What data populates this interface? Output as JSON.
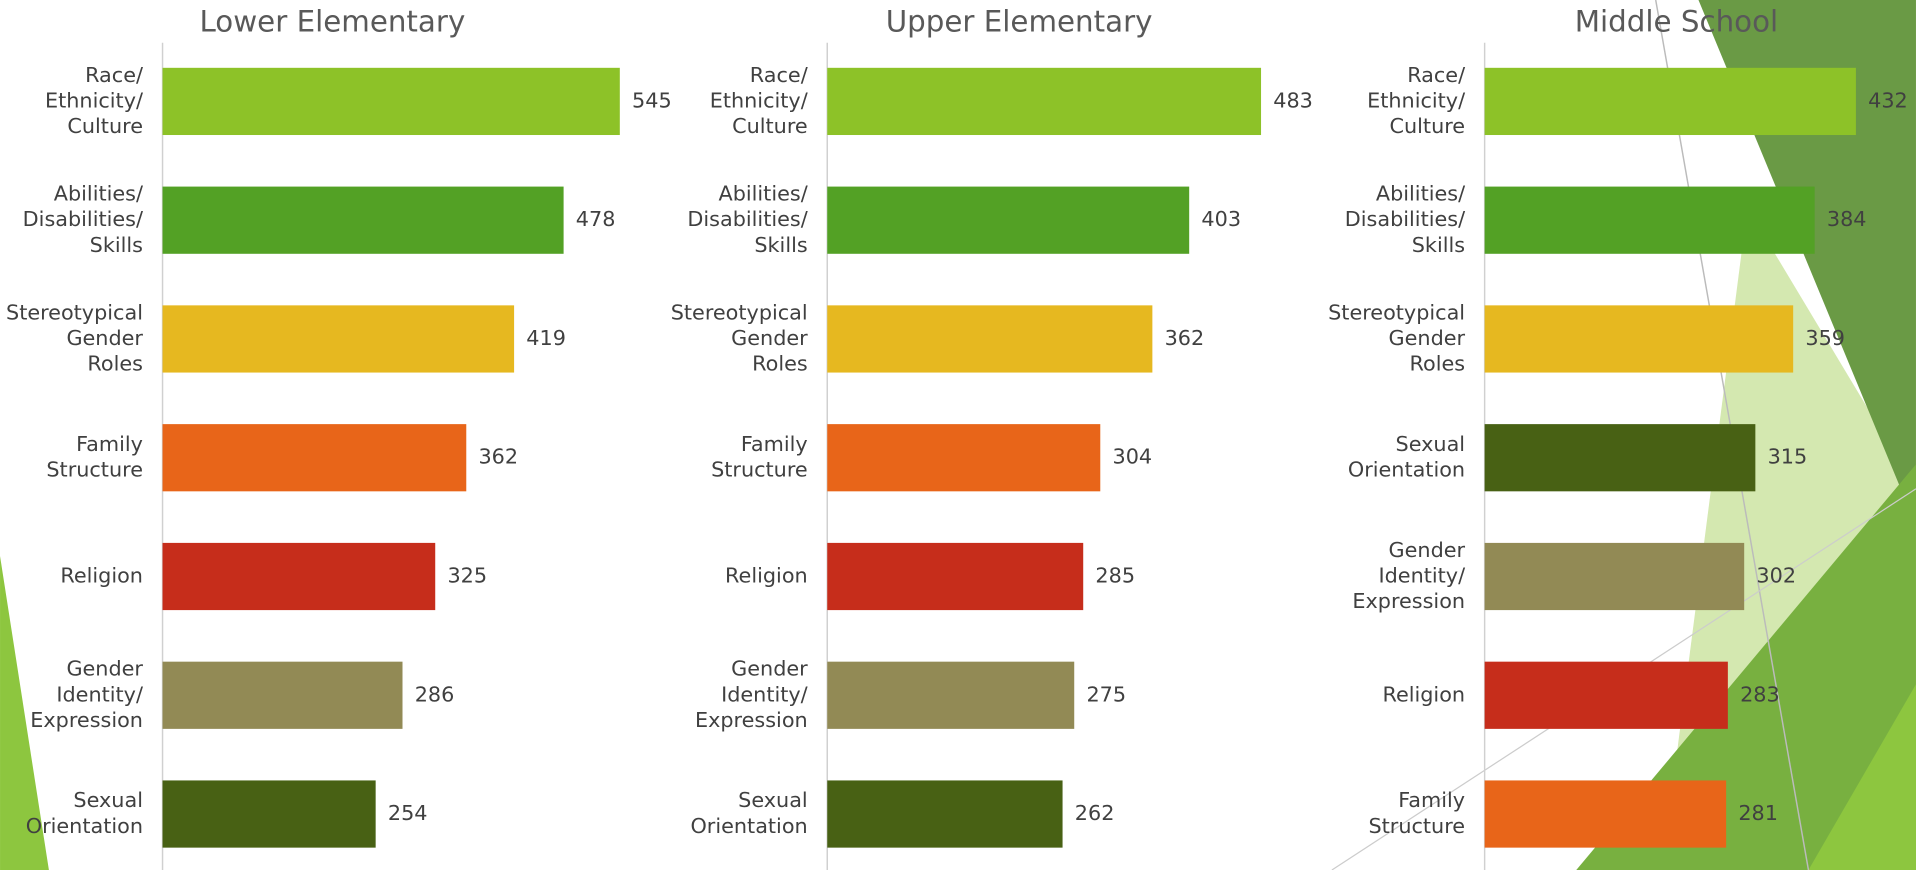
{
  "chart_data": [
    {
      "type": "bar",
      "orientation": "horizontal",
      "title": "Lower Elementary",
      "categories": [
        "Race/ Ethnicity/ Culture",
        "Abilities/ Disabilities/ Skills",
        "Stereotypical Gender Roles",
        "Family Structure",
        "Religion",
        "Gender Identity/ Expression",
        "Sexual Orientation"
      ],
      "values": [
        545,
        478,
        419,
        362,
        325,
        286,
        254
      ],
      "colors": [
        "#8dc228",
        "#53a125",
        "#e6b820",
        "#e86519",
        "#c62d1b",
        "#928a55",
        "#486114"
      ],
      "xlim": [
        0,
        600
      ]
    },
    {
      "type": "bar",
      "orientation": "horizontal",
      "title": "Upper Elementary",
      "categories": [
        "Race/ Ethnicity/ Culture",
        "Abilities/ Disabilities/ Skills",
        "Stereotypical Gender Roles",
        "Family Structure",
        "Religion",
        "Gender Identity/ Expression",
        "Sexual Orientation"
      ],
      "values": [
        483,
        403,
        362,
        304,
        285,
        275,
        262
      ],
      "colors": [
        "#8dc228",
        "#53a125",
        "#e6b820",
        "#e86519",
        "#c62d1b",
        "#928a55",
        "#486114"
      ],
      "xlim": [
        0,
        600
      ]
    },
    {
      "type": "bar",
      "orientation": "horizontal",
      "title": "Middle School",
      "categories": [
        "Race/ Ethnicity/ Culture",
        "Abilities/ Disabilities/ Skills",
        "Stereotypical Gender Roles",
        "Sexual Orientation",
        "Gender Identity/ Expression",
        "Religion",
        "Family Structure"
      ],
      "values": [
        432,
        384,
        359,
        315,
        302,
        283,
        281
      ],
      "colors": [
        "#8dc228",
        "#53a125",
        "#e6b820",
        "#486114",
        "#928a55",
        "#c62d1b",
        "#e86519"
      ],
      "xlim": [
        0,
        600
      ]
    }
  ]
}
